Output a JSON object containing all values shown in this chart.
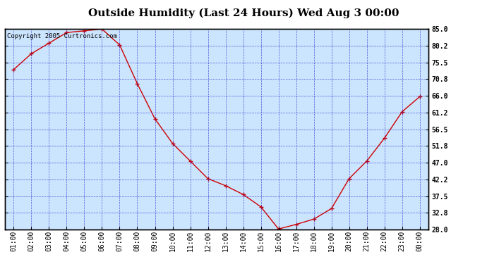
{
  "title": "Outside Humidity (Last 24 Hours) Wed Aug 3 00:00",
  "copyright": "Copyright 2005 Curtronics.com",
  "x_labels": [
    "01:00",
    "02:00",
    "03:00",
    "04:00",
    "05:00",
    "06:00",
    "07:00",
    "08:00",
    "09:00",
    "10:00",
    "11:00",
    "12:00",
    "13:00",
    "14:00",
    "15:00",
    "16:00",
    "17:00",
    "18:00",
    "19:00",
    "20:00",
    "21:00",
    "22:00",
    "23:00",
    "00:00"
  ],
  "x_values": [
    1,
    2,
    3,
    4,
    5,
    6,
    7,
    8,
    9,
    10,
    11,
    12,
    13,
    14,
    15,
    16,
    17,
    18,
    19,
    20,
    21,
    22,
    23,
    24
  ],
  "y_values": [
    73.5,
    78.0,
    81.0,
    84.0,
    84.5,
    85.0,
    80.5,
    69.5,
    59.5,
    52.5,
    47.5,
    42.5,
    40.5,
    38.0,
    34.5,
    28.2,
    29.5,
    31.0,
    34.0,
    42.5,
    47.5,
    54.0,
    61.5,
    65.8
  ],
  "ylim": [
    28.0,
    85.0
  ],
  "yticks": [
    28.0,
    32.8,
    37.5,
    42.2,
    47.0,
    51.8,
    56.5,
    61.2,
    66.0,
    70.8,
    75.5,
    80.2,
    85.0
  ],
  "ytick_labels": [
    "28.0",
    "32.8",
    "37.5",
    "42.2",
    "47.0",
    "51.8",
    "56.5",
    "61.2",
    "66.0",
    "70.8",
    "75.5",
    "80.2",
    "85.0"
  ],
  "line_color": "#cc0000",
  "marker_color": "#cc0000",
  "fig_bg_color": "#ffffff",
  "plot_bg_color": "#cce5ff",
  "grid_color": "#3333cc",
  "border_color": "#000000",
  "title_fontsize": 11,
  "tick_fontsize": 7,
  "copyright_fontsize": 6.5
}
